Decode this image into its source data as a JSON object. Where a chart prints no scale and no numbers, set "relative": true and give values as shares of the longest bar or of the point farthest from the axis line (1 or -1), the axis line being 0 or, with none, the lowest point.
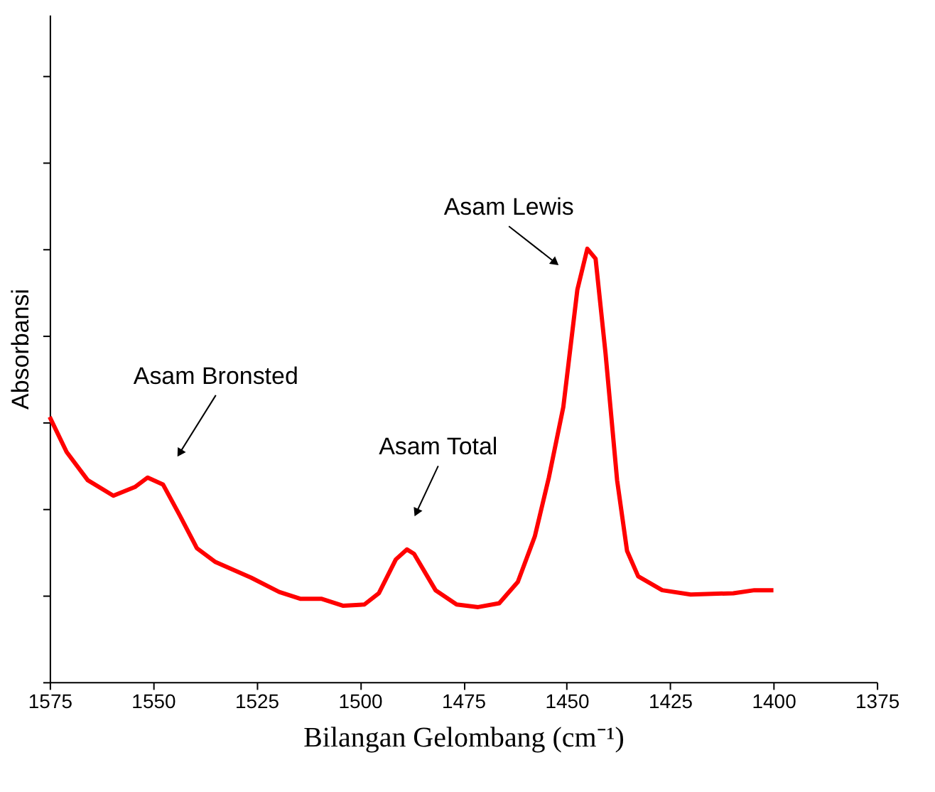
{
  "chart_data": {
    "type": "line",
    "relative": true,
    "xlabel": "Bilangan Gelombang (cm⁻¹)",
    "ylabel": "Absorbansi",
    "xlim": [
      1575,
      1375
    ],
    "xticks": [
      1575,
      1550,
      1525,
      1500,
      1475,
      1450,
      1425,
      1400,
      1375
    ],
    "x": [
      1575,
      1570.9,
      1565.8,
      1559.6,
      1554.4,
      1551.3,
      1547.6,
      1543.5,
      1539.4,
      1534.9,
      1526.3,
      1519.5,
      1514.3,
      1509.2,
      1504.0,
      1498.9,
      1495.4,
      1491.3,
      1488.6,
      1486.9,
      1481.7,
      1476.6,
      1471.4,
      1466.3,
      1461.8,
      1457.7,
      1454.3,
      1450.8,
      1447.4,
      1445.0,
      1443.0,
      1440.6,
      1437.8,
      1435.4,
      1432.7,
      1426.9,
      1420.0,
      1409.7,
      1404.6,
      1400
    ],
    "series": [
      {
        "color": "#ff0000",
        "values": [
          0.612,
          0.531,
          0.466,
          0.43,
          0.45,
          0.472,
          0.456,
          0.384,
          0.309,
          0.277,
          0.241,
          0.208,
          0.192,
          0.192,
          0.176,
          0.179,
          0.205,
          0.283,
          0.306,
          0.296,
          0.212,
          0.179,
          0.173,
          0.182,
          0.231,
          0.336,
          0.472,
          0.635,
          0.906,
          1.0,
          0.977,
          0.759,
          0.466,
          0.303,
          0.244,
          0.212,
          0.202,
          0.205,
          0.212,
          0.212
        ]
      }
    ],
    "annotations": [
      {
        "text": "Asam Bronsted",
        "x": 1543.4,
        "y": 0.531
      },
      {
        "text": "Asam Total",
        "x": 1486.2,
        "y": 0.394
      },
      {
        "text": "Asam Lewis",
        "x": 1453,
        "y": 0.97
      }
    ],
    "grid": false,
    "marker": "none",
    "line_style": "solid"
  }
}
